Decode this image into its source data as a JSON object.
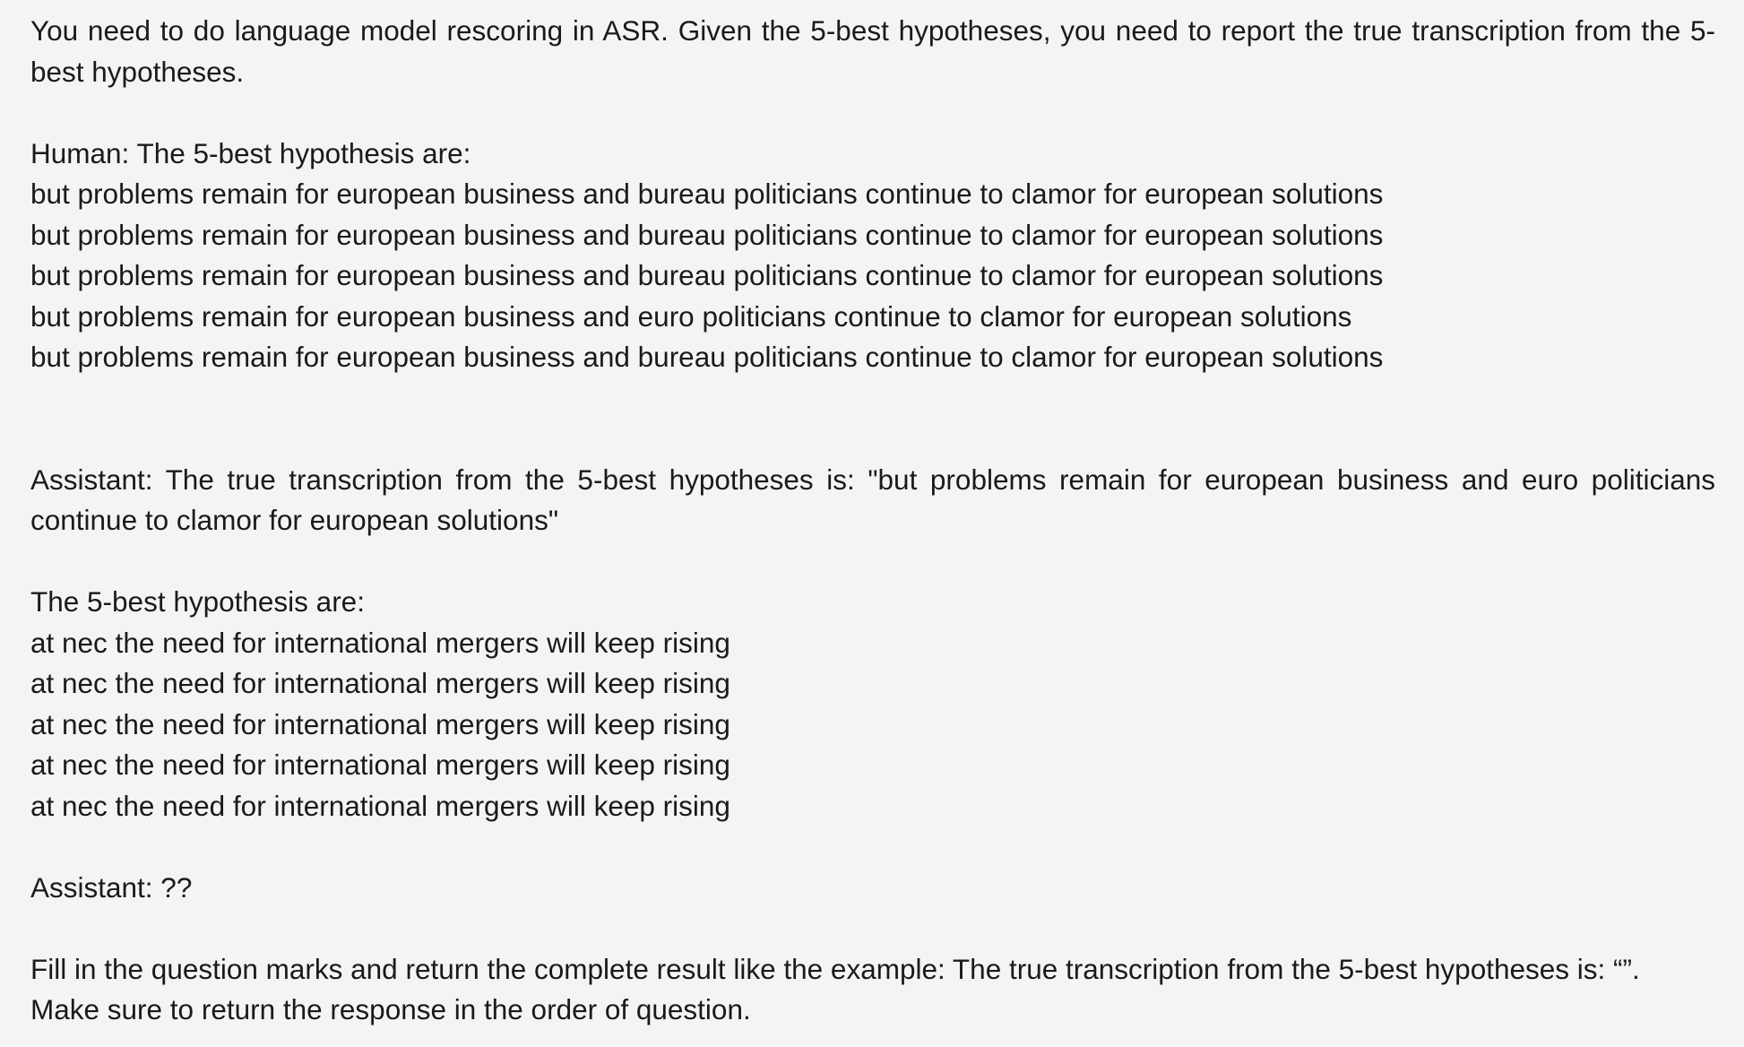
{
  "intro": {
    "text": "You need to do language model rescoring in ASR. Given the 5-best hypotheses, you need to report the true transcription from the 5-best hypotheses."
  },
  "example": {
    "human_header": "Human: The 5-best hypothesis are:",
    "hypotheses": [
      "but problems remain for european business and bureau politicians continue to clamor for european solutions",
      "but problems remain for european business and bureau politicians continue to clamor for european solutions",
      "but problems remain for european business and bureau politicians continue to clamor for european solutions",
      "but problems remain for european business and euro politicians continue to clamor for european solutions",
      "but problems remain for european business and bureau politicians continue to clamor for european solutions"
    ],
    "assistant_answer": "Assistant: The true transcription from the 5-best hypotheses is: \"but problems remain for european business and euro politicians continue to clamor for european solutions\""
  },
  "query": {
    "header": "The 5-best hypothesis are:",
    "hypotheses": [
      "at nec the need for international mergers will keep rising",
      "at nec the need for international mergers will keep rising",
      "at nec the need for international mergers will keep rising",
      "at nec the need for international mergers will keep rising",
      "at nec the need for international mergers will keep rising"
    ],
    "assistant_placeholder": "Assistant: ??"
  },
  "instruction": {
    "text": "Fill in the question marks and return the complete result like the example: The true transcription from the 5-best hypotheses is: “”. Make sure to return the response in the order of question."
  }
}
